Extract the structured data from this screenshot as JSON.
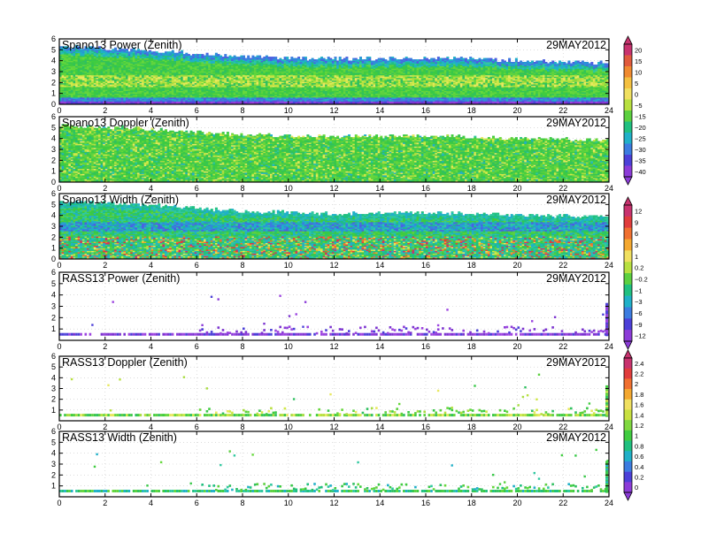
{
  "date": "29MAY2012",
  "x_ticks": [
    "0",
    "2",
    "4",
    "6",
    "8",
    "10",
    "12",
    "14",
    "16",
    "18",
    "20",
    "22",
    "24"
  ],
  "colorbars": [
    {
      "labels": [
        "20",
        "15",
        "10",
        "5",
        "0",
        "−5",
        "−15",
        "−20",
        "−25",
        "−30",
        "−35",
        "−40"
      ],
      "colors": [
        "#c8326e",
        "#e05a3c",
        "#f08a30",
        "#f4c040",
        "#f0e060",
        "#b8e040",
        "#5cd040",
        "#20c080",
        "#20b0c8",
        "#3c7ce0",
        "#4c40d8",
        "#8c3cd8"
      ]
    },
    {
      "labels": [
        "12",
        "9",
        "6",
        "3",
        "1",
        "0.2",
        "−0.2",
        "−1",
        "−3",
        "−6",
        "−9",
        "−12"
      ],
      "colors": [
        "#c8326e",
        "#e03c3c",
        "#f07030",
        "#f4a830",
        "#f0e060",
        "#b8e040",
        "#5cd040",
        "#20c080",
        "#20b0c8",
        "#3c7ce0",
        "#4c40d8",
        "#8c3cd8"
      ]
    },
    {
      "labels": [
        "2.4",
        "2.2",
        "2",
        "1.8",
        "1.6",
        "1.4",
        "1.2",
        "1",
        "0.8",
        "0.6",
        "0.4",
        "0.2",
        "0"
      ],
      "colors": [
        "#c8326e",
        "#e03c3c",
        "#f07030",
        "#f4a830",
        "#f0e060",
        "#c8e040",
        "#80d840",
        "#40cc40",
        "#20c080",
        "#20b0c8",
        "#3c7ce0",
        "#4c40d8",
        "#8c3cd8"
      ]
    }
  ],
  "chart_data": [
    {
      "type": "heatmap",
      "title": "Spano13 Power (Zenith)",
      "date": "29MAY2012",
      "xlim": [
        0,
        24
      ],
      "ylim": [
        0,
        6
      ],
      "x_ticks": [
        0,
        2,
        4,
        6,
        8,
        10,
        12,
        14,
        16,
        18,
        20,
        22,
        24
      ],
      "y_ticks": [
        0,
        1,
        2,
        3,
        4,
        5,
        6
      ],
      "top_height_profile": {
        "x": [
          0,
          2,
          4,
          6,
          8,
          12,
          16,
          20,
          24
        ],
        "y": [
          5.2,
          5.1,
          4.9,
          4.6,
          4.3,
          4.1,
          4.2,
          4.0,
          3.7
        ]
      },
      "dominant_values": "green (-15 to -5) with yellow band near 2 km; blue/purple near top and at 0.3 km"
    },
    {
      "type": "heatmap",
      "title": "Spano13 Doppler (Zenith)",
      "date": "29MAY2012",
      "xlim": [
        0,
        24
      ],
      "ylim": [
        0,
        6
      ],
      "x_ticks": [
        0,
        2,
        4,
        6,
        8,
        10,
        12,
        14,
        16,
        18,
        20,
        22,
        24
      ],
      "y_ticks": [
        0,
        1,
        2,
        3,
        4,
        5,
        6
      ],
      "top_height_profile": {
        "x": [
          0,
          2,
          4,
          6,
          8,
          12,
          16,
          20,
          24
        ],
        "y": [
          5.1,
          5.0,
          4.8,
          4.5,
          4.3,
          4.1,
          4.2,
          4.0,
          3.8
        ]
      },
      "dominant_values": "green with yellow streaks"
    },
    {
      "type": "heatmap",
      "title": "Spano13 Width (Zenith)",
      "date": "29MAY2012",
      "xlim": [
        0,
        24
      ],
      "ylim": [
        0,
        6
      ],
      "x_ticks": [
        0,
        2,
        4,
        6,
        8,
        10,
        12,
        14,
        16,
        18,
        20,
        22,
        24
      ],
      "y_ticks": [
        0,
        1,
        2,
        3,
        4,
        5,
        6
      ],
      "top_height_profile": {
        "x": [
          0,
          2,
          4,
          6,
          8,
          12,
          16,
          20,
          24
        ],
        "y": [
          5.2,
          5.1,
          4.9,
          4.6,
          4.3,
          4.1,
          4.2,
          4.0,
          3.8
        ]
      },
      "dominant_values": "green/cyan with blue band near 3 km, orange/red speckles below 2 km"
    },
    {
      "type": "scatter",
      "title": "RASS13 Power (Zenith)",
      "date": "29MAY2012",
      "xlim": [
        0,
        24
      ],
      "ylim": [
        0,
        6
      ],
      "x_ticks": [
        0,
        2,
        4,
        6,
        8,
        10,
        12,
        14,
        16,
        18,
        20,
        22,
        24
      ],
      "y_ticks": [
        1,
        2,
        3,
        4,
        5,
        6
      ],
      "base_height": 0.6,
      "dominant_values": "purple points mostly between 0.5 and 1.2 km"
    },
    {
      "type": "scatter",
      "title": "RASS13 Doppler (Zenith)",
      "date": "29MAY2012",
      "xlim": [
        0,
        24
      ],
      "ylim": [
        0,
        6
      ],
      "x_ticks": [
        0,
        2,
        4,
        6,
        8,
        10,
        12,
        14,
        16,
        18,
        20,
        22,
        24
      ],
      "y_ticks": [
        1,
        2,
        3,
        4,
        5,
        6
      ],
      "base_height": 0.6,
      "dominant_values": "green points mostly between 0.5 and 1.2 km"
    },
    {
      "type": "scatter",
      "title": "RASS13 Width (Zenith)",
      "date": "29MAY2012",
      "xlim": [
        0,
        24
      ],
      "ylim": [
        0,
        6
      ],
      "x_ticks": [
        0,
        2,
        4,
        6,
        8,
        10,
        12,
        14,
        16,
        18,
        20,
        22,
        24
      ],
      "y_ticks": [
        1,
        2,
        3,
        4,
        5,
        6
      ],
      "base_height": 0.6,
      "dominant_values": "green/cyan points mostly between 0.5 and 1.2 km"
    }
  ]
}
